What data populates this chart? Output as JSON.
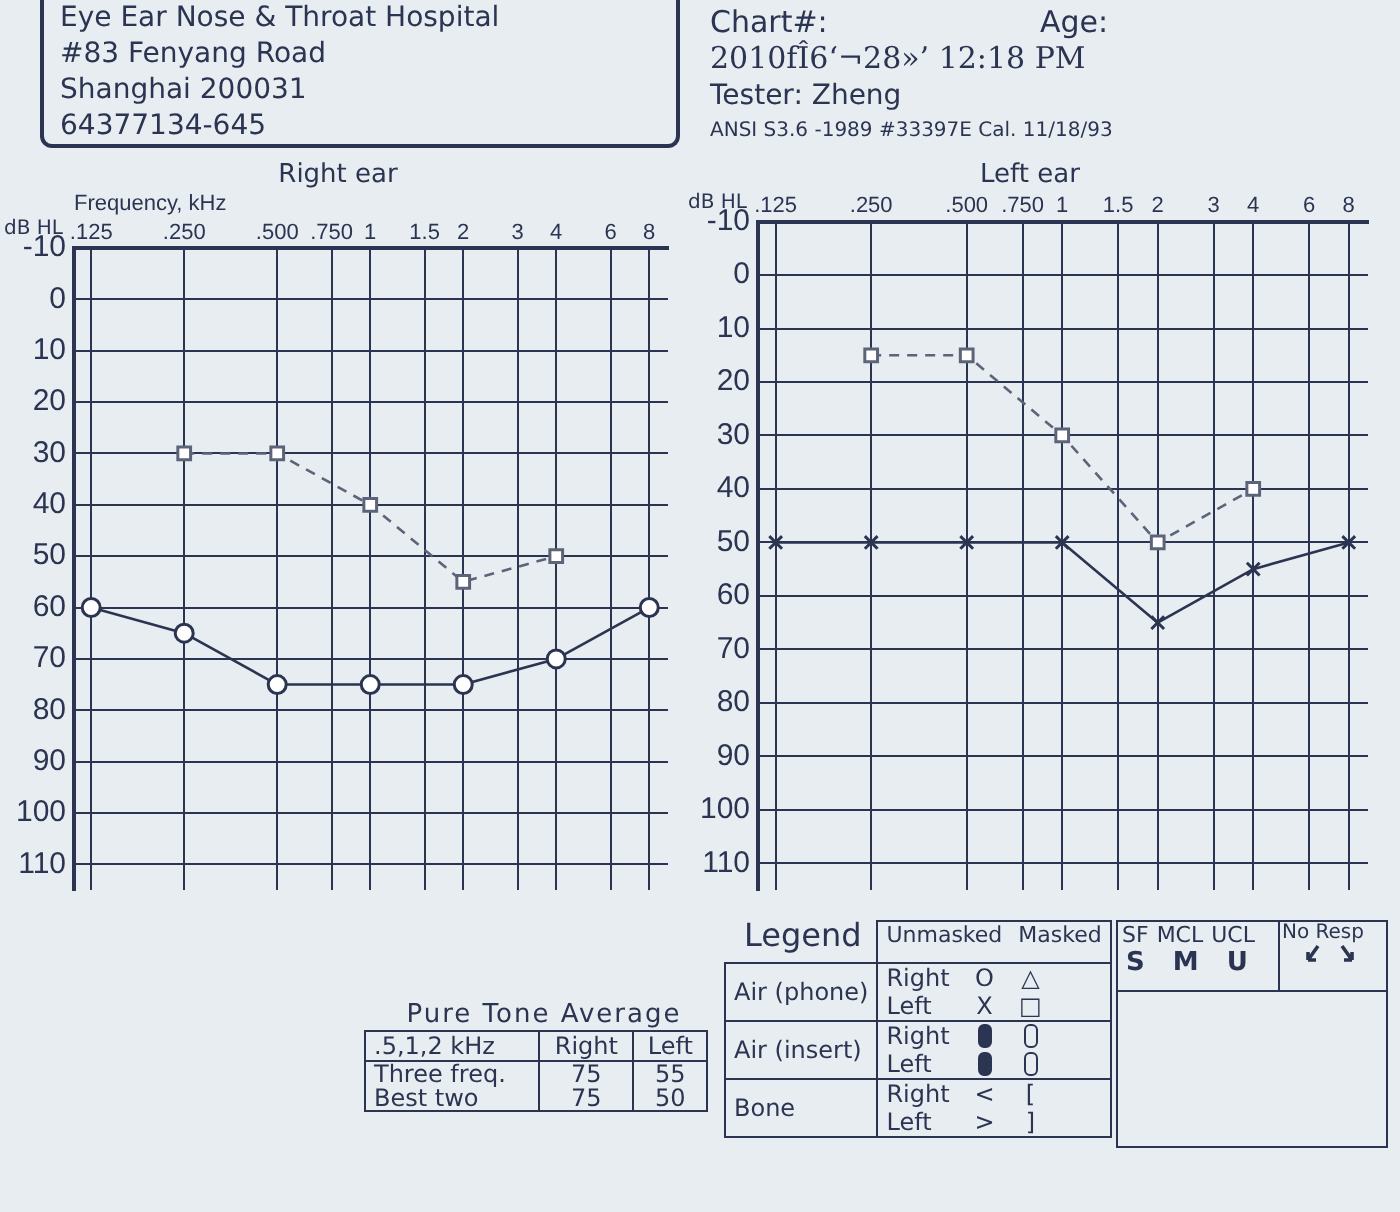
{
  "chart_data": [
    {
      "type": "other",
      "annotations": [
        "Eye Ear Nose & Throat Hospital",
        "#83 Fenyang Road",
        "Shanghai  200031",
        "64377134-645",
        "Chart#:",
        "Age:",
        "2010fÎ6‘¬28»’  12:18 PM",
        "Tester: Zheng",
        "ANSI  S3.6 -1989  #33397E  Cal. 11/18/93"
      ]
    },
    {
      "type": "line",
      "title": "Right ear",
      "xlabel": "Frequency, kHz",
      "ylabel": "dB HL",
      "log": "x",
      "xlim": [
        0.11,
        9.2
      ],
      "xticks": [
        {
          "value": 0.125,
          "label": ".125"
        },
        {
          "value": 0.25,
          "label": ".250"
        },
        {
          "value": 0.5,
          "label": ".500"
        },
        {
          "value": 0.75,
          "label": ".750"
        },
        1,
        1.5,
        2,
        3,
        4,
        6,
        8
      ],
      "ylim": [
        115,
        -10
      ],
      "yticks": [
        -10,
        0,
        10,
        20,
        30,
        40,
        50,
        60,
        70,
        80,
        90,
        100,
        110
      ],
      "grid": true,
      "legend": false,
      "series": [
        {
          "x": [
            0.125,
            0.25,
            0.5,
            1,
            2,
            4,
            8
          ],
          "values": [
            60,
            65,
            75,
            75,
            75,
            70,
            60
          ],
          "color": "#2b3552",
          "marker": "circle",
          "line_style": "solid"
        },
        {
          "x": [
            0.25,
            0.5,
            1,
            2,
            4
          ],
          "values": [
            30,
            30,
            40,
            55,
            50
          ],
          "color": "#5b6478",
          "marker": "square",
          "line_style": "dashed"
        }
      ]
    },
    {
      "type": "line",
      "title": "Left ear",
      "ylabel": "dB HL",
      "log": "x",
      "xlim": [
        0.11,
        9.2
      ],
      "xticks": [
        {
          "value": 0.125,
          "label": ".125"
        },
        {
          "value": 0.25,
          "label": ".250"
        },
        {
          "value": 0.5,
          "label": ".500"
        },
        {
          "value": 0.75,
          "label": ".750"
        },
        1,
        1.5,
        2,
        3,
        4,
        6,
        8
      ],
      "ylim": [
        115,
        -10
      ],
      "yticks": [
        -10,
        0,
        10,
        20,
        30,
        40,
        50,
        60,
        70,
        80,
        90,
        100,
        110
      ],
      "grid": true,
      "legend": false,
      "series": [
        {
          "x": [
            0.125,
            0.25,
            0.5,
            1,
            2,
            4,
            8
          ],
          "values": [
            50,
            50,
            50,
            50,
            65,
            55,
            50
          ],
          "color": "#2b3552",
          "marker": "cross",
          "line_style": "solid"
        },
        {
          "x": [
            0.25,
            0.5,
            1,
            2,
            4
          ],
          "values": [
            15,
            15,
            30,
            50,
            40
          ],
          "color": "#5b6478",
          "marker": "square",
          "line_style": "dashed"
        }
      ]
    },
    {
      "type": "other",
      "title": "Pure Tone Average",
      "annotations": [
        ".5,1,2 kHz",
        "Right",
        "Left",
        "Three freq.",
        "75",
        "55",
        "Best two",
        "75",
        "50"
      ]
    },
    {
      "type": "other",
      "title": "Legend",
      "annotations": [
        "Unmasked",
        "Masked",
        "Air (phone)",
        "Right",
        "Left",
        "O",
        "X",
        "△",
        "□",
        "Air (insert)",
        "Right",
        "Left",
        "Bone",
        "Right",
        "Left",
        "<",
        ">",
        "[",
        "]",
        "SF",
        "MCL",
        "UCL",
        "No Resp",
        "S",
        "M",
        "U"
      ]
    }
  ]
}
